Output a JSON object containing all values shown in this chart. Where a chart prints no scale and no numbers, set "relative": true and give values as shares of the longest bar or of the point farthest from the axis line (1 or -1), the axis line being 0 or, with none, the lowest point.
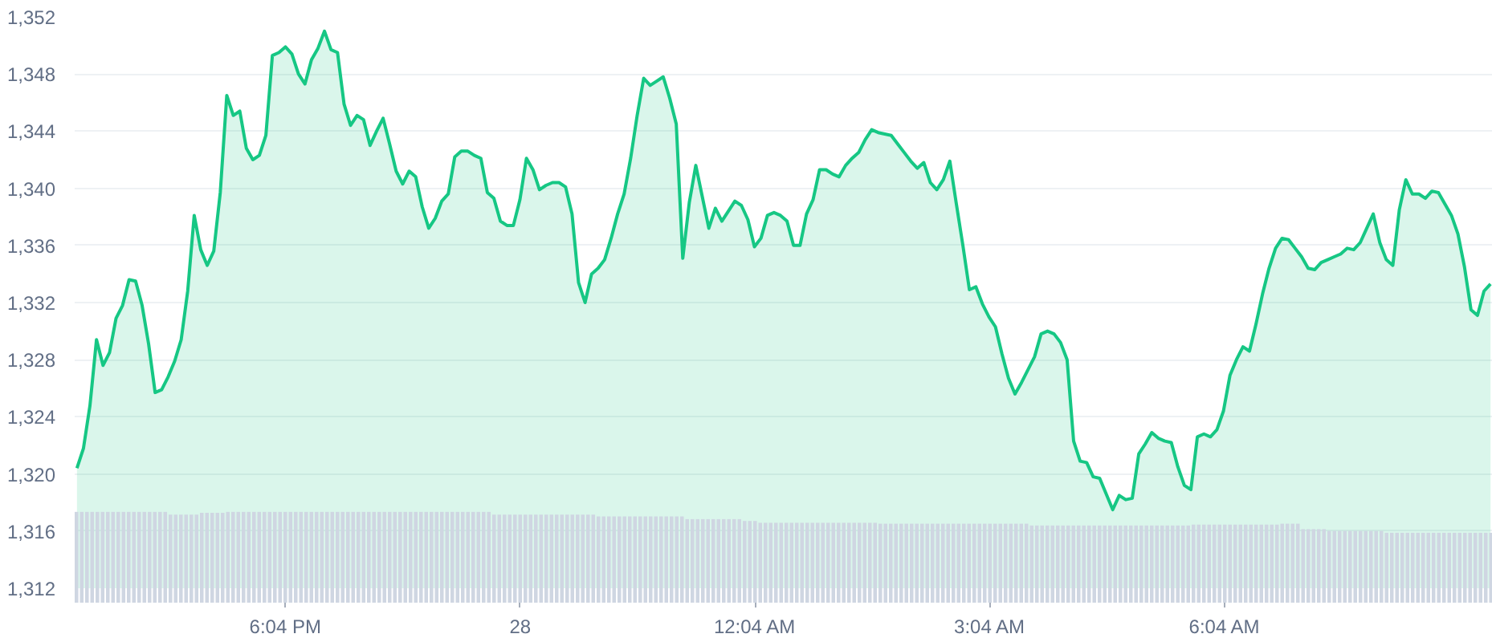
{
  "chart_data": [
    {
      "type": "area",
      "tick_labels": "y",
      "categories": [
        null,
        null,
        null,
        null,
        null,
        null,
        null,
        null,
        null,
        null,
        null,
        null,
        null,
        null,
        null,
        null,
        null,
        null,
        null,
        null,
        null,
        null,
        null,
        null,
        null,
        null,
        null,
        null,
        null,
        null,
        null,
        null,
        null,
        null,
        null,
        null,
        null,
        null,
        null,
        null,
        null,
        null,
        null,
        null,
        null,
        null,
        null,
        null,
        null,
        null,
        null,
        null,
        null,
        null,
        null,
        null,
        null,
        null,
        null,
        null,
        null,
        null,
        null,
        null,
        null,
        null,
        null,
        null,
        null,
        null,
        null,
        null,
        null,
        null,
        null,
        null,
        null,
        null,
        null,
        null,
        null,
        null,
        null,
        null,
        null,
        null,
        null,
        null,
        null,
        null,
        null,
        null,
        null,
        null,
        null,
        null,
        null,
        null,
        null,
        null,
        null,
        null,
        null,
        null,
        null,
        null,
        null,
        null,
        null,
        null,
        null,
        null,
        null,
        null,
        null,
        null,
        null,
        null,
        null,
        null,
        null,
        null,
        null,
        null,
        null,
        null,
        null,
        null,
        null,
        null,
        null,
        null,
        null,
        null,
        null,
        null,
        null,
        null,
        null,
        null,
        null,
        null,
        null,
        null,
        null,
        null,
        null,
        null,
        null,
        null,
        null,
        null,
        null,
        null,
        null,
        null,
        null,
        null,
        null,
        null,
        null,
        null,
        null,
        null,
        null,
        null,
        null,
        null,
        null,
        null,
        null,
        null,
        null,
        null,
        null,
        null,
        null,
        null,
        null,
        null,
        null,
        null,
        null,
        null,
        null,
        null,
        null,
        null,
        null,
        null,
        null,
        null,
        null,
        null,
        null,
        null,
        null,
        null,
        null,
        null,
        null,
        null,
        null,
        null,
        null,
        null,
        null,
        null,
        null,
        null,
        null,
        null,
        null,
        null,
        null,
        null,
        null,
        null
      ],
      "ylim": [
        1312,
        1352
      ],
      "yticks": [
        {
          "value": 1312,
          "label": "1,312"
        },
        {
          "value": 1316,
          "label": "1,316"
        },
        {
          "value": 1320,
          "label": "1,320"
        },
        {
          "value": 1324,
          "label": "1,324"
        },
        {
          "value": 1328,
          "label": "1,328"
        },
        {
          "value": 1332,
          "label": "1,332"
        },
        {
          "value": 1336,
          "label": "1,336"
        },
        {
          "value": 1340,
          "label": "1,340"
        },
        {
          "value": 1344,
          "label": "1,344"
        },
        {
          "value": 1348,
          "label": "1,348"
        },
        {
          "value": 1352,
          "label": "1,352"
        }
      ],
      "grid": "y",
      "series": [
        {
          "color": "#16c784",
          "values": [
            1320.4,
            1321.8,
            1324.8,
            1329.4,
            1327.6,
            1328.5,
            1330.9,
            1331.8,
            1333.6,
            1333.5,
            1331.8,
            1329.1,
            1325.7,
            1325.9,
            1326.8,
            1327.9,
            1329.4,
            1332.8,
            1338.1,
            1335.7,
            1334.6,
            1335.6,
            1339.7,
            1346.5,
            1345.1,
            1345.4,
            1342.8,
            1342.0,
            1342.3,
            1343.7,
            1349.3,
            1349.5,
            1349.9,
            1349.4,
            1348.0,
            1347.3,
            1349.0,
            1349.8,
            1351.0,
            1349.7,
            1349.5,
            1345.9,
            1344.4,
            1345.1,
            1344.8,
            1343.0,
            1344.0,
            1344.9,
            1343.1,
            1341.2,
            1340.3,
            1341.2,
            1340.8,
            1338.7,
            1337.2,
            1337.9,
            1339.1,
            1339.6,
            1342.2,
            1342.6,
            1342.6,
            1342.3,
            1342.1,
            1339.7,
            1339.3,
            1337.7,
            1337.4,
            1337.4,
            1339.2,
            1342.1,
            1341.3,
            1339.9,
            1340.2,
            1340.4,
            1340.4,
            1340.1,
            1338.2,
            1333.4,
            1332.0,
            1334.0,
            1334.4,
            1335.0,
            1336.5,
            1338.2,
            1339.6,
            1342.1,
            1345.1,
            1347.7,
            1347.2,
            1347.5,
            1347.8,
            1346.3,
            1344.5,
            1335.1,
            1339.0,
            1341.6,
            1339.4,
            1337.2,
            1338.6,
            1337.7,
            1338.4,
            1339.1,
            1338.8,
            1337.8,
            1335.9,
            1336.5,
            1338.1,
            1338.3,
            1338.1,
            1337.7,
            1336.0,
            1336.0,
            1338.2,
            1339.2,
            1341.3,
            1341.3,
            1341.0,
            1340.8,
            1341.6,
            1342.1,
            1342.5,
            1343.4,
            1344.1,
            1343.9,
            1343.8,
            1343.7,
            1343.1,
            1342.5,
            1341.9,
            1341.4,
            1341.8,
            1340.4,
            1339.9,
            1340.6,
            1341.9,
            1338.9,
            1336.0,
            1332.9,
            1333.1,
            1331.9,
            1331.0,
            1330.3,
            1328.4,
            1326.7,
            1325.6,
            1326.4,
            1327.3,
            1328.2,
            1329.8,
            1330.0,
            1329.8,
            1329.2,
            1328.0,
            1322.3,
            1320.9,
            1320.8,
            1319.8,
            1319.7,
            1318.6,
            1317.5,
            1318.5,
            1318.2,
            1318.3,
            1321.4,
            1322.1,
            1322.9,
            1322.5,
            1322.3,
            1322.2,
            1320.5,
            1319.2,
            1318.9,
            1322.6,
            1322.8,
            1322.6,
            1323.1,
            1324.4,
            1326.9,
            1328.0,
            1328.9,
            1328.6,
            1330.5,
            1332.6,
            1334.4,
            1335.8,
            1336.5,
            1336.4,
            1335.8,
            1335.2,
            1334.4,
            1334.3,
            1334.8,
            1335.0,
            1335.2,
            1335.4,
            1335.8,
            1335.7,
            1336.2,
            1337.2,
            1338.2,
            1336.2,
            1335.0,
            1334.6,
            1338.5,
            1340.6,
            1339.6,
            1339.6,
            1339.3,
            1339.8,
            1339.7,
            1338.9,
            1338.1,
            1336.8,
            1334.5,
            1331.5,
            1331.1,
            1332.8,
            1333.3
          ]
        }
      ]
    },
    {
      "type": "bar",
      "relative": true,
      "tick_labels": "x",
      "categories": [
        null,
        null,
        null,
        null,
        null,
        null,
        null,
        null,
        null,
        null,
        null,
        null,
        null,
        null,
        null,
        null,
        null,
        null,
        null,
        null,
        null,
        null,
        null,
        null,
        null,
        null,
        null,
        null,
        null,
        null,
        null,
        null,
        null,
        null,
        null,
        null,
        null,
        null,
        null,
        null,
        "6:04 PM",
        null,
        null,
        null,
        null,
        null,
        null,
        null,
        null,
        null,
        null,
        null,
        null,
        null,
        null,
        null,
        null,
        null,
        null,
        null,
        null,
        null,
        null,
        null,
        null,
        null,
        null,
        null,
        null,
        null,
        null,
        null,
        null,
        null,
        null,
        null,
        null,
        null,
        null,
        null,
        null,
        null,
        null,
        null,
        null,
        "28",
        null,
        null,
        null,
        null,
        null,
        null,
        null,
        null,
        null,
        null,
        null,
        null,
        null,
        null,
        null,
        null,
        null,
        null,
        null,
        null,
        null,
        null,
        null,
        null,
        null,
        null,
        null,
        null,
        null,
        null,
        null,
        null,
        null,
        null,
        null,
        null,
        null,
        null,
        null,
        null,
        null,
        null,
        null,
        null,
        "12:04 AM",
        null,
        null,
        null,
        null,
        null,
        null,
        null,
        null,
        null,
        null,
        null,
        null,
        null,
        null,
        null,
        null,
        null,
        null,
        null,
        null,
        null,
        null,
        null,
        null,
        null,
        null,
        null,
        null,
        null,
        null,
        null,
        null,
        null,
        null,
        null,
        null,
        null,
        null,
        null,
        null,
        null,
        null,
        null,
        null,
        "3:04 AM",
        null,
        null,
        null,
        null,
        null,
        null,
        null,
        null,
        null,
        null,
        null,
        null,
        null,
        null,
        null,
        null,
        null,
        null,
        null,
        null,
        null,
        null,
        null,
        null,
        null,
        null,
        null,
        null,
        null,
        null,
        null,
        null,
        null,
        null,
        null,
        null,
        null,
        null,
        null,
        null,
        null,
        null,
        null,
        null,
        "6:04 AM",
        null,
        null,
        null,
        null,
        null,
        null,
        null,
        null,
        null,
        null,
        null,
        null,
        null,
        null,
        null,
        null,
        null,
        null,
        null,
        null,
        null,
        null,
        null,
        null,
        null,
        null,
        null,
        null,
        null,
        null,
        null,
        null,
        null,
        null,
        null,
        null,
        null,
        null,
        null,
        null,
        null,
        null,
        null,
        null,
        null,
        null,
        null,
        null,
        null,
        null,
        null
      ],
      "series": [
        {
          "color": "#cfd6e2",
          "values": [
            1,
            1,
            1,
            1,
            1,
            1,
            1,
            1,
            1,
            1,
            1,
            1,
            1,
            1,
            1,
            1,
            1,
            1,
            0.97,
            0.97,
            0.97,
            0.97,
            0.97,
            0.97,
            0.99,
            0.99,
            0.99,
            0.99,
            0.99,
            1,
            1,
            1,
            1,
            1,
            1,
            1,
            1,
            1,
            1,
            1,
            1,
            1,
            1,
            1,
            1,
            1,
            1,
            1,
            1,
            1,
            1,
            1,
            1,
            1,
            1,
            1,
            1,
            1,
            1,
            1,
            1,
            1,
            1,
            1,
            1,
            1,
            1,
            1,
            1,
            1,
            1,
            1,
            1,
            1,
            1,
            1,
            1,
            1,
            1,
            1,
            0.97,
            0.97,
            0.97,
            0.97,
            0.97,
            0.97,
            0.97,
            0.97,
            0.97,
            0.97,
            0.97,
            0.97,
            0.97,
            0.97,
            0.97,
            0.97,
            0.97,
            0.97,
            0.97,
            0.97,
            0.95,
            0.95,
            0.95,
            0.95,
            0.95,
            0.95,
            0.95,
            0.95,
            0.95,
            0.95,
            0.95,
            0.95,
            0.95,
            0.95,
            0.95,
            0.95,
            0.95,
            0.92,
            0.92,
            0.92,
            0.92,
            0.92,
            0.92,
            0.92,
            0.92,
            0.92,
            0.92,
            0.92,
            0.9,
            0.9,
            0.9,
            0.88,
            0.88,
            0.88,
            0.88,
            0.88,
            0.88,
            0.88,
            0.88,
            0.88,
            0.88,
            0.88,
            0.88,
            0.88,
            0.88,
            0.88,
            0.88,
            0.88,
            0.88,
            0.88,
            0.88,
            0.88,
            0.88,
            0.88,
            0.87,
            0.87,
            0.87,
            0.87,
            0.87,
            0.87,
            0.87,
            0.87,
            0.87,
            0.87,
            0.87,
            0.87,
            0.87,
            0.87,
            0.87,
            0.87,
            0.87,
            0.87,
            0.87,
            0.87,
            0.87,
            0.87,
            0.87,
            0.87,
            0.87,
            0.87,
            0.87,
            0.87,
            0.87,
            0.85,
            0.85,
            0.85,
            0.85,
            0.85,
            0.85,
            0.85,
            0.85,
            0.85,
            0.85,
            0.85,
            0.85,
            0.85,
            0.85,
            0.85,
            0.85,
            0.85,
            0.85,
            0.85,
            0.85,
            0.85,
            0.85,
            0.85,
            0.85,
            0.85,
            0.85,
            0.85,
            0.85,
            0.85,
            0.85,
            0.85,
            0.86,
            0.86,
            0.86,
            0.86,
            0.86,
            0.86,
            0.86,
            0.86,
            0.86,
            0.86,
            0.86,
            0.86,
            0.86,
            0.86,
            0.86,
            0.86,
            0.86,
            0.87,
            0.87,
            0.87,
            0.87,
            0.81,
            0.81,
            0.81,
            0.81,
            0.81,
            0.79,
            0.79,
            0.79,
            0.79,
            0.79,
            0.79,
            0.79,
            0.79,
            0.79,
            0.79,
            0.79,
            0.77,
            0.77,
            0.77,
            0.77,
            0.77,
            0.77,
            0.77,
            0.77,
            0.77,
            0.77,
            0.77,
            0.77,
            0.77,
            0.77,
            0.77,
            0.77,
            0.77,
            0.77,
            0.77,
            0.77,
            0.77
          ]
        }
      ]
    }
  ]
}
